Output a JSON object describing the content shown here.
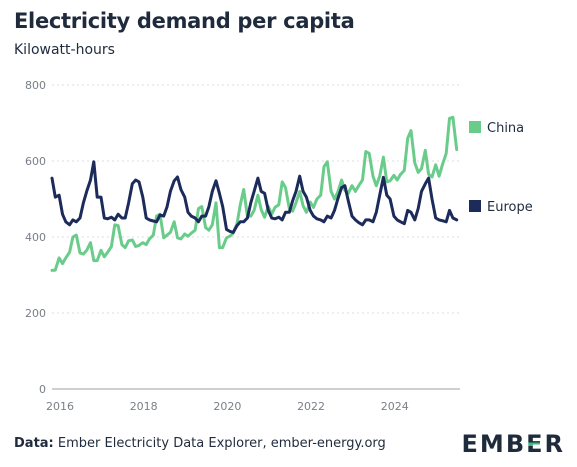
{
  "title": "Electricity demand per capita",
  "subtitle": "Kilowatt-hours",
  "footer": {
    "label": "Data:",
    "text": "Ember Electricity Data Explorer, ember-energy.org"
  },
  "logo": {
    "text": "EMBER",
    "accent_color": "#39b97a"
  },
  "colors": {
    "china": "#6acc8a",
    "europe": "#1c2b5a",
    "grid": "#dedede",
    "axis": "#9aa0a6"
  },
  "chart_data": {
    "type": "line",
    "title": "Electricity demand per capita",
    "ylabel": "Kilowatt-hours",
    "ylim": [
      0,
      800
    ],
    "yticks": [
      0,
      200,
      400,
      600,
      800
    ],
    "xlim": [
      2016.0,
      2025.75
    ],
    "xticks": [
      2016,
      2018,
      2020,
      2022,
      2024
    ],
    "grid": true,
    "legend_placement": "right",
    "series": [
      {
        "name": "China",
        "color": "#6acc8a",
        "x": [
          2016.0,
          2016.08,
          2016.17,
          2016.25,
          2016.33,
          2016.42,
          2016.5,
          2016.58,
          2016.67,
          2016.75,
          2016.83,
          2016.92,
          2017.0,
          2017.08,
          2017.17,
          2017.25,
          2017.33,
          2017.42,
          2017.5,
          2017.58,
          2017.67,
          2017.75,
          2017.83,
          2017.92,
          2018.0,
          2018.08,
          2018.17,
          2018.25,
          2018.33,
          2018.42,
          2018.5,
          2018.58,
          2018.67,
          2018.75,
          2018.83,
          2018.92,
          2019.0,
          2019.08,
          2019.17,
          2019.25,
          2019.33,
          2019.42,
          2019.5,
          2019.58,
          2019.67,
          2019.75,
          2019.83,
          2019.92,
          2020.0,
          2020.08,
          2020.17,
          2020.25,
          2020.33,
          2020.42,
          2020.5,
          2020.58,
          2020.67,
          2020.75,
          2020.83,
          2020.92,
          2021.0,
          2021.08,
          2021.17,
          2021.25,
          2021.33,
          2021.42,
          2021.5,
          2021.58,
          2021.67,
          2021.75,
          2021.83,
          2021.92,
          2022.0,
          2022.08,
          2022.17,
          2022.25,
          2022.33,
          2022.42,
          2022.5,
          2022.58,
          2022.67,
          2022.75,
          2022.83,
          2022.92,
          2023.0,
          2023.08,
          2023.17,
          2023.25,
          2023.33,
          2023.42,
          2023.5,
          2023.58,
          2023.67,
          2023.75,
          2023.83,
          2023.92,
          2024.0,
          2024.08,
          2024.17,
          2024.25,
          2024.33,
          2024.42,
          2024.5,
          2024.58,
          2024.67,
          2024.75,
          2024.83,
          2024.92,
          2025.0,
          2025.08,
          2025.17,
          2025.25,
          2025.33,
          2025.42,
          2025.5,
          2025.58,
          2025.67
        ],
        "values": [
          312,
          313,
          345,
          330,
          345,
          360,
          400,
          405,
          358,
          355,
          365,
          385,
          338,
          338,
          365,
          348,
          360,
          375,
          432,
          430,
          380,
          372,
          390,
          392,
          375,
          378,
          385,
          380,
          395,
          405,
          455,
          460,
          398,
          405,
          412,
          440,
          398,
          395,
          408,
          402,
          410,
          418,
          475,
          480,
          425,
          418,
          432,
          490,
          372,
          372,
          398,
          402,
          410,
          435,
          485,
          525,
          455,
          455,
          470,
          510,
          472,
          452,
          480,
          460,
          478,
          485,
          545,
          530,
          475,
          468,
          490,
          520,
          482,
          465,
          492,
          478,
          500,
          510,
          585,
          598,
          520,
          500,
          518,
          550,
          522,
          515,
          535,
          520,
          535,
          550,
          625,
          620,
          560,
          535,
          560,
          610,
          545,
          548,
          562,
          550,
          565,
          575,
          660,
          680,
          595,
          570,
          580,
          628,
          565,
          558,
          590,
          560,
          590,
          620,
          712,
          715,
          630
        ]
      },
      {
        "name": "Europe",
        "color": "#1c2b5a",
        "x": [
          2016.0,
          2016.08,
          2016.17,
          2016.25,
          2016.33,
          2016.42,
          2016.5,
          2016.58,
          2016.67,
          2016.75,
          2016.83,
          2016.92,
          2017.0,
          2017.08,
          2017.17,
          2017.25,
          2017.33,
          2017.42,
          2017.5,
          2017.58,
          2017.67,
          2017.75,
          2017.83,
          2017.92,
          2018.0,
          2018.08,
          2018.17,
          2018.25,
          2018.33,
          2018.42,
          2018.5,
          2018.58,
          2018.67,
          2018.75,
          2018.83,
          2018.92,
          2019.0,
          2019.08,
          2019.17,
          2019.25,
          2019.33,
          2019.42,
          2019.5,
          2019.58,
          2019.67,
          2019.75,
          2019.83,
          2019.92,
          2020.0,
          2020.08,
          2020.17,
          2020.25,
          2020.33,
          2020.42,
          2020.5,
          2020.58,
          2020.67,
          2020.75,
          2020.83,
          2020.92,
          2021.0,
          2021.08,
          2021.17,
          2021.25,
          2021.33,
          2021.42,
          2021.5,
          2021.58,
          2021.67,
          2021.75,
          2021.83,
          2021.92,
          2022.0,
          2022.08,
          2022.17,
          2022.25,
          2022.33,
          2022.42,
          2022.5,
          2022.58,
          2022.67,
          2022.75,
          2022.83,
          2022.92,
          2023.0,
          2023.08,
          2023.17,
          2023.25,
          2023.33,
          2023.42,
          2023.5,
          2023.58,
          2023.67,
          2023.75,
          2023.83,
          2023.92,
          2024.0,
          2024.08,
          2024.17,
          2024.25,
          2024.33,
          2024.42,
          2024.5,
          2024.58,
          2024.67,
          2024.75,
          2024.83,
          2024.92,
          2025.0,
          2025.08,
          2025.17,
          2025.25,
          2025.33,
          2025.42,
          2025.5,
          2025.58,
          2025.67
        ],
        "values": [
          555,
          505,
          510,
          460,
          440,
          432,
          445,
          440,
          450,
          490,
          520,
          550,
          598,
          505,
          505,
          450,
          448,
          452,
          445,
          460,
          450,
          450,
          490,
          540,
          550,
          545,
          505,
          450,
          445,
          442,
          440,
          458,
          455,
          480,
          520,
          548,
          558,
          525,
          505,
          465,
          455,
          450,
          440,
          455,
          455,
          480,
          520,
          548,
          515,
          480,
          420,
          415,
          412,
          430,
          440,
          440,
          450,
          490,
          520,
          555,
          520,
          515,
          470,
          450,
          448,
          452,
          445,
          465,
          465,
          495,
          520,
          560,
          520,
          505,
          470,
          455,
          448,
          445,
          440,
          455,
          450,
          470,
          500,
          530,
          535,
          495,
          455,
          445,
          438,
          432,
          445,
          445,
          440,
          465,
          510,
          557,
          510,
          500,
          455,
          445,
          440,
          435,
          470,
          465,
          445,
          475,
          520,
          540,
          555,
          500,
          450,
          445,
          443,
          440,
          470,
          450,
          445
        ]
      }
    ]
  }
}
